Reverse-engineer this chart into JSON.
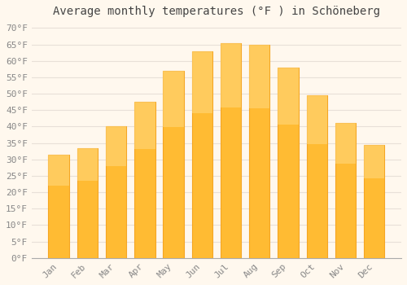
{
  "title": "Average monthly temperatures (°F ) in Schöneberg",
  "months": [
    "Jan",
    "Feb",
    "Mar",
    "Apr",
    "May",
    "Jun",
    "Jul",
    "Aug",
    "Sep",
    "Oct",
    "Nov",
    "Dec"
  ],
  "values": [
    31.5,
    33.5,
    40.0,
    47.5,
    57.0,
    63.0,
    65.5,
    65.0,
    58.0,
    49.5,
    41.0,
    34.5
  ],
  "bar_color_main": "#FFBB33",
  "bar_color_light": "#FFD980",
  "bar_color_edge": "#F5A623",
  "background_color": "#FFF8EE",
  "grid_color": "#E8E0D8",
  "ytick_labels": [
    "0°F",
    "5°F",
    "10°F",
    "15°F",
    "20°F",
    "25°F",
    "30°F",
    "35°F",
    "40°F",
    "45°F",
    "50°F",
    "55°F",
    "60°F",
    "65°F",
    "70°F"
  ],
  "ytick_values": [
    0,
    5,
    10,
    15,
    20,
    25,
    30,
    35,
    40,
    45,
    50,
    55,
    60,
    65,
    70
  ],
  "ylim": [
    0,
    72
  ],
  "title_fontsize": 10,
  "tick_fontsize": 8,
  "font_family": "monospace",
  "tick_color": "#888888",
  "title_color": "#444444"
}
